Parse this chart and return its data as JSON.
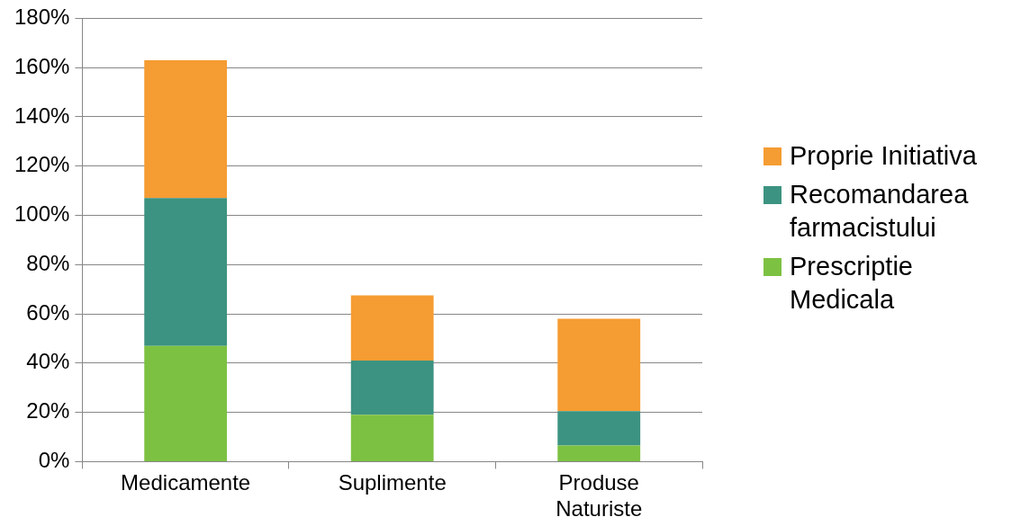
{
  "chart_data": {
    "type": "bar",
    "stacked": true,
    "categories": [
      "Medicamente",
      "Suplimente",
      "Produse Naturiste"
    ],
    "series": [
      {
        "name": "Prescriptie Medicala",
        "color": "#7dc142",
        "values": [
          47,
          19,
          6.5
        ]
      },
      {
        "name": "Recomandarea farmacistului",
        "color": "#3c9381",
        "values": [
          60,
          22,
          14
        ]
      },
      {
        "name": "Proprie Initiativa",
        "color": "#f59c32",
        "values": [
          56,
          26.5,
          37.5
        ]
      }
    ],
    "ylim": [
      0,
      180
    ],
    "yticks": [
      {
        "value": 0,
        "label": "0%"
      },
      {
        "value": 20,
        "label": "20%"
      },
      {
        "value": 40,
        "label": "40%"
      },
      {
        "value": 60,
        "label": "60%"
      },
      {
        "value": 80,
        "label": "80%"
      },
      {
        "value": 100,
        "label": "100%"
      },
      {
        "value": 120,
        "label": "120%"
      },
      {
        "value": 140,
        "label": "140%"
      },
      {
        "value": 160,
        "label": "160%"
      },
      {
        "value": 180,
        "label": "180%"
      }
    ],
    "grid": "y",
    "legend": "right"
  }
}
